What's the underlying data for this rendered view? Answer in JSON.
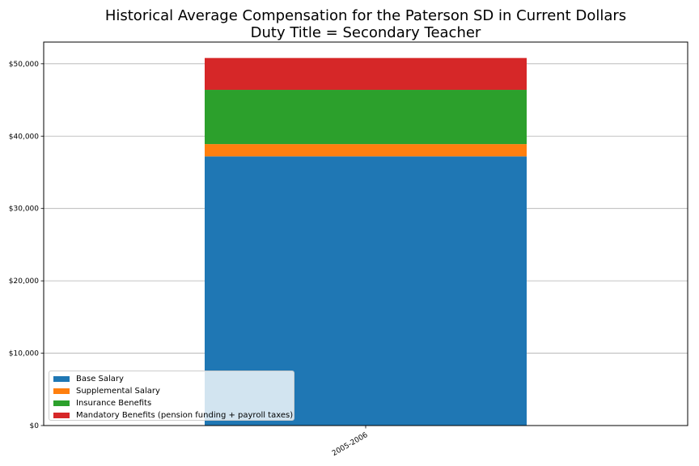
{
  "chart_data": {
    "type": "bar",
    "stacked": true,
    "title": "Historical Average Compensation for the Paterson SD in Current Dollars",
    "subtitle": "Duty Title = Secondary Teacher",
    "categories": [
      "2005-2006"
    ],
    "series": [
      {
        "name": "Base Salary",
        "color": "#1f77b4",
        "values": [
          37200
        ]
      },
      {
        "name": "Supplemental Salary",
        "color": "#ff7f0e",
        "values": [
          1700
        ]
      },
      {
        "name": "Insurance Benefits",
        "color": "#2ca02c",
        "values": [
          7500
        ]
      },
      {
        "name": "Mandatory Benefits (pension funding + payroll taxes)",
        "color": "#d62728",
        "values": [
          4400
        ]
      }
    ],
    "ylim": [
      0,
      53000
    ],
    "yticks": [
      {
        "value": 0,
        "label": "$0"
      },
      {
        "value": 10000,
        "label": "$10,000"
      },
      {
        "value": 20000,
        "label": "$20,000"
      },
      {
        "value": 30000,
        "label": "$30,000"
      },
      {
        "value": 40000,
        "label": "$40,000"
      },
      {
        "value": 50000,
        "label": "$50,000"
      }
    ],
    "grid": "horizontal",
    "legend_position": "lower-left"
  }
}
